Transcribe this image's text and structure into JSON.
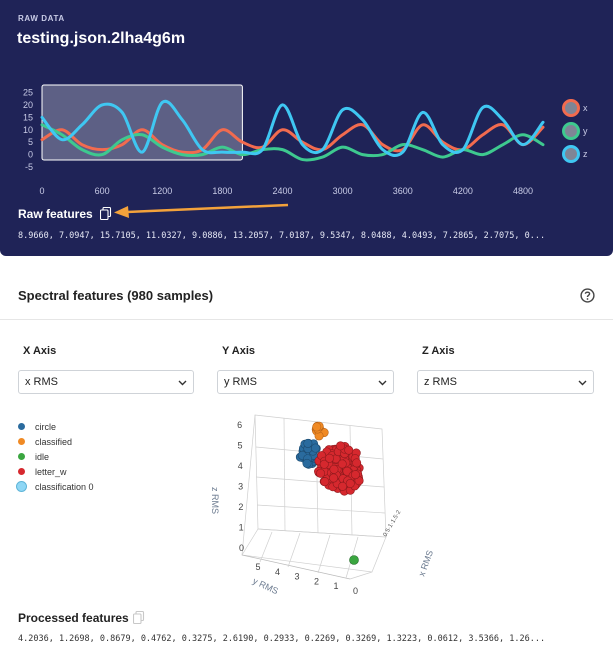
{
  "raw_data": {
    "section_label": "RAW DATA",
    "title": "testing.json.2lha4g6m",
    "features_label": "Raw features",
    "features_values": "8.9660, 7.0947, 15.7105, 11.0327, 9.0886, 13.2057, 7.0187, 9.5347, 8.0488, 4.0493, 7.2865, 2.7075, 0..."
  },
  "chart_data": [
    {
      "type": "line",
      "title": "",
      "x_ticks": [
        "0",
        "600",
        "1200",
        "1800",
        "2400",
        "3000",
        "3600",
        "4200",
        "4800"
      ],
      "y_ticks": [
        "25",
        "20",
        "15",
        "10",
        "5",
        "0",
        "-5"
      ],
      "xlim": [
        0,
        5000
      ],
      "ylim": [
        -7,
        26
      ],
      "selection_window": [
        0,
        2000
      ],
      "legend": [
        "x",
        "y",
        "z"
      ],
      "legend_placement": "right",
      "series": [
        {
          "name": "x",
          "color": "#f26b4f",
          "x": [
            0,
            200,
            400,
            600,
            800,
            1000,
            1200,
            1400,
            1600,
            1800,
            2000,
            2200,
            2400,
            2600,
            2800,
            3000,
            3200,
            3400,
            3600,
            3800,
            4000,
            4200,
            4400,
            4600,
            4800,
            5000
          ],
          "values": [
            6,
            10,
            4,
            2,
            4,
            10,
            4,
            1,
            2,
            10,
            5,
            3,
            10,
            5,
            2,
            8,
            12,
            4,
            2,
            12,
            5,
            2,
            8,
            12,
            4,
            11
          ]
        },
        {
          "name": "y",
          "color": "#3ec98f",
          "x": [
            0,
            200,
            400,
            600,
            800,
            1000,
            1200,
            1400,
            1600,
            1800,
            2000,
            2200,
            2400,
            2600,
            2800,
            3000,
            3200,
            3400,
            3600,
            3800,
            4000,
            4200,
            4400,
            4600,
            4800,
            5000
          ],
          "values": [
            12,
            8,
            2,
            0,
            6,
            8,
            3,
            0,
            0,
            3,
            0,
            2,
            2,
            -2,
            -1,
            3,
            0,
            0,
            4,
            2,
            -1,
            2,
            0,
            4,
            8,
            4
          ]
        },
        {
          "name": "z",
          "color": "#3fc7f2",
          "x": [
            0,
            200,
            400,
            600,
            800,
            1000,
            1200,
            1400,
            1600,
            1800,
            2000,
            2200,
            2400,
            2600,
            2800,
            3000,
            3200,
            3400,
            3600,
            3800,
            4000,
            4200,
            4400,
            4600,
            4800,
            5000
          ],
          "values": [
            15,
            6,
            12,
            20,
            17,
            1,
            21,
            14,
            2,
            1,
            1,
            2,
            20,
            4,
            2,
            18,
            14,
            2,
            1,
            17,
            4,
            2,
            19,
            14,
            4,
            13
          ]
        }
      ]
    },
    {
      "type": "scatter",
      "title": "",
      "xlabel": "y RMS",
      "ylabel": "z RMS",
      "zlabel": "x RMS",
      "z_ticks": [
        "0",
        "1",
        "2",
        "3",
        "4",
        "5",
        "6"
      ],
      "y_ticks": [
        "5",
        "4",
        "3",
        "2",
        "1",
        "0"
      ],
      "legend_placement": "left",
      "series": [
        {
          "name": "circle",
          "color": "#2a6b9e"
        },
        {
          "name": "classified",
          "color": "#f08a24"
        },
        {
          "name": "idle",
          "color": "#3aa640"
        },
        {
          "name": "letter_w",
          "color": "#d6282e"
        },
        {
          "name": "classification 0",
          "color": "#8fd7f5"
        }
      ]
    }
  ],
  "spectral": {
    "title": "Spectral features (980 samples)",
    "x_axis": {
      "label": "X Axis",
      "selected": "x RMS"
    },
    "y_axis": {
      "label": "Y Axis",
      "selected": "y RMS"
    },
    "z_axis": {
      "label": "Z Axis",
      "selected": "z RMS"
    },
    "legend": [
      {
        "name": "circle",
        "color": "#2a6b9e"
      },
      {
        "name": "classified",
        "color": "#f08a24"
      },
      {
        "name": "idle",
        "color": "#3aa640"
      },
      {
        "name": "letter_w",
        "color": "#d6282e"
      },
      {
        "name": "classification 0",
        "color": "#8fd7f5"
      }
    ],
    "plot": {
      "zlabel_text": "z RMS",
      "ylabel_text": "y RMS",
      "xlabel_text": "x RMS"
    },
    "processed_label": "Processed features",
    "processed_values": "4.2036, 1.2698, 0.8679, 0.4762, 0.3275, 2.6190, 0.2933, 0.2269, 0.3269, 1.3223, 0.0612, 3.5366, 1.26..."
  },
  "icons": {
    "copy": "copy-icon",
    "help": "help-circle-icon",
    "chevron": "chevron-down-icon"
  },
  "colors": {
    "panel_bg": "#1f2357",
    "annotation_arrow": "#f3a23b"
  }
}
